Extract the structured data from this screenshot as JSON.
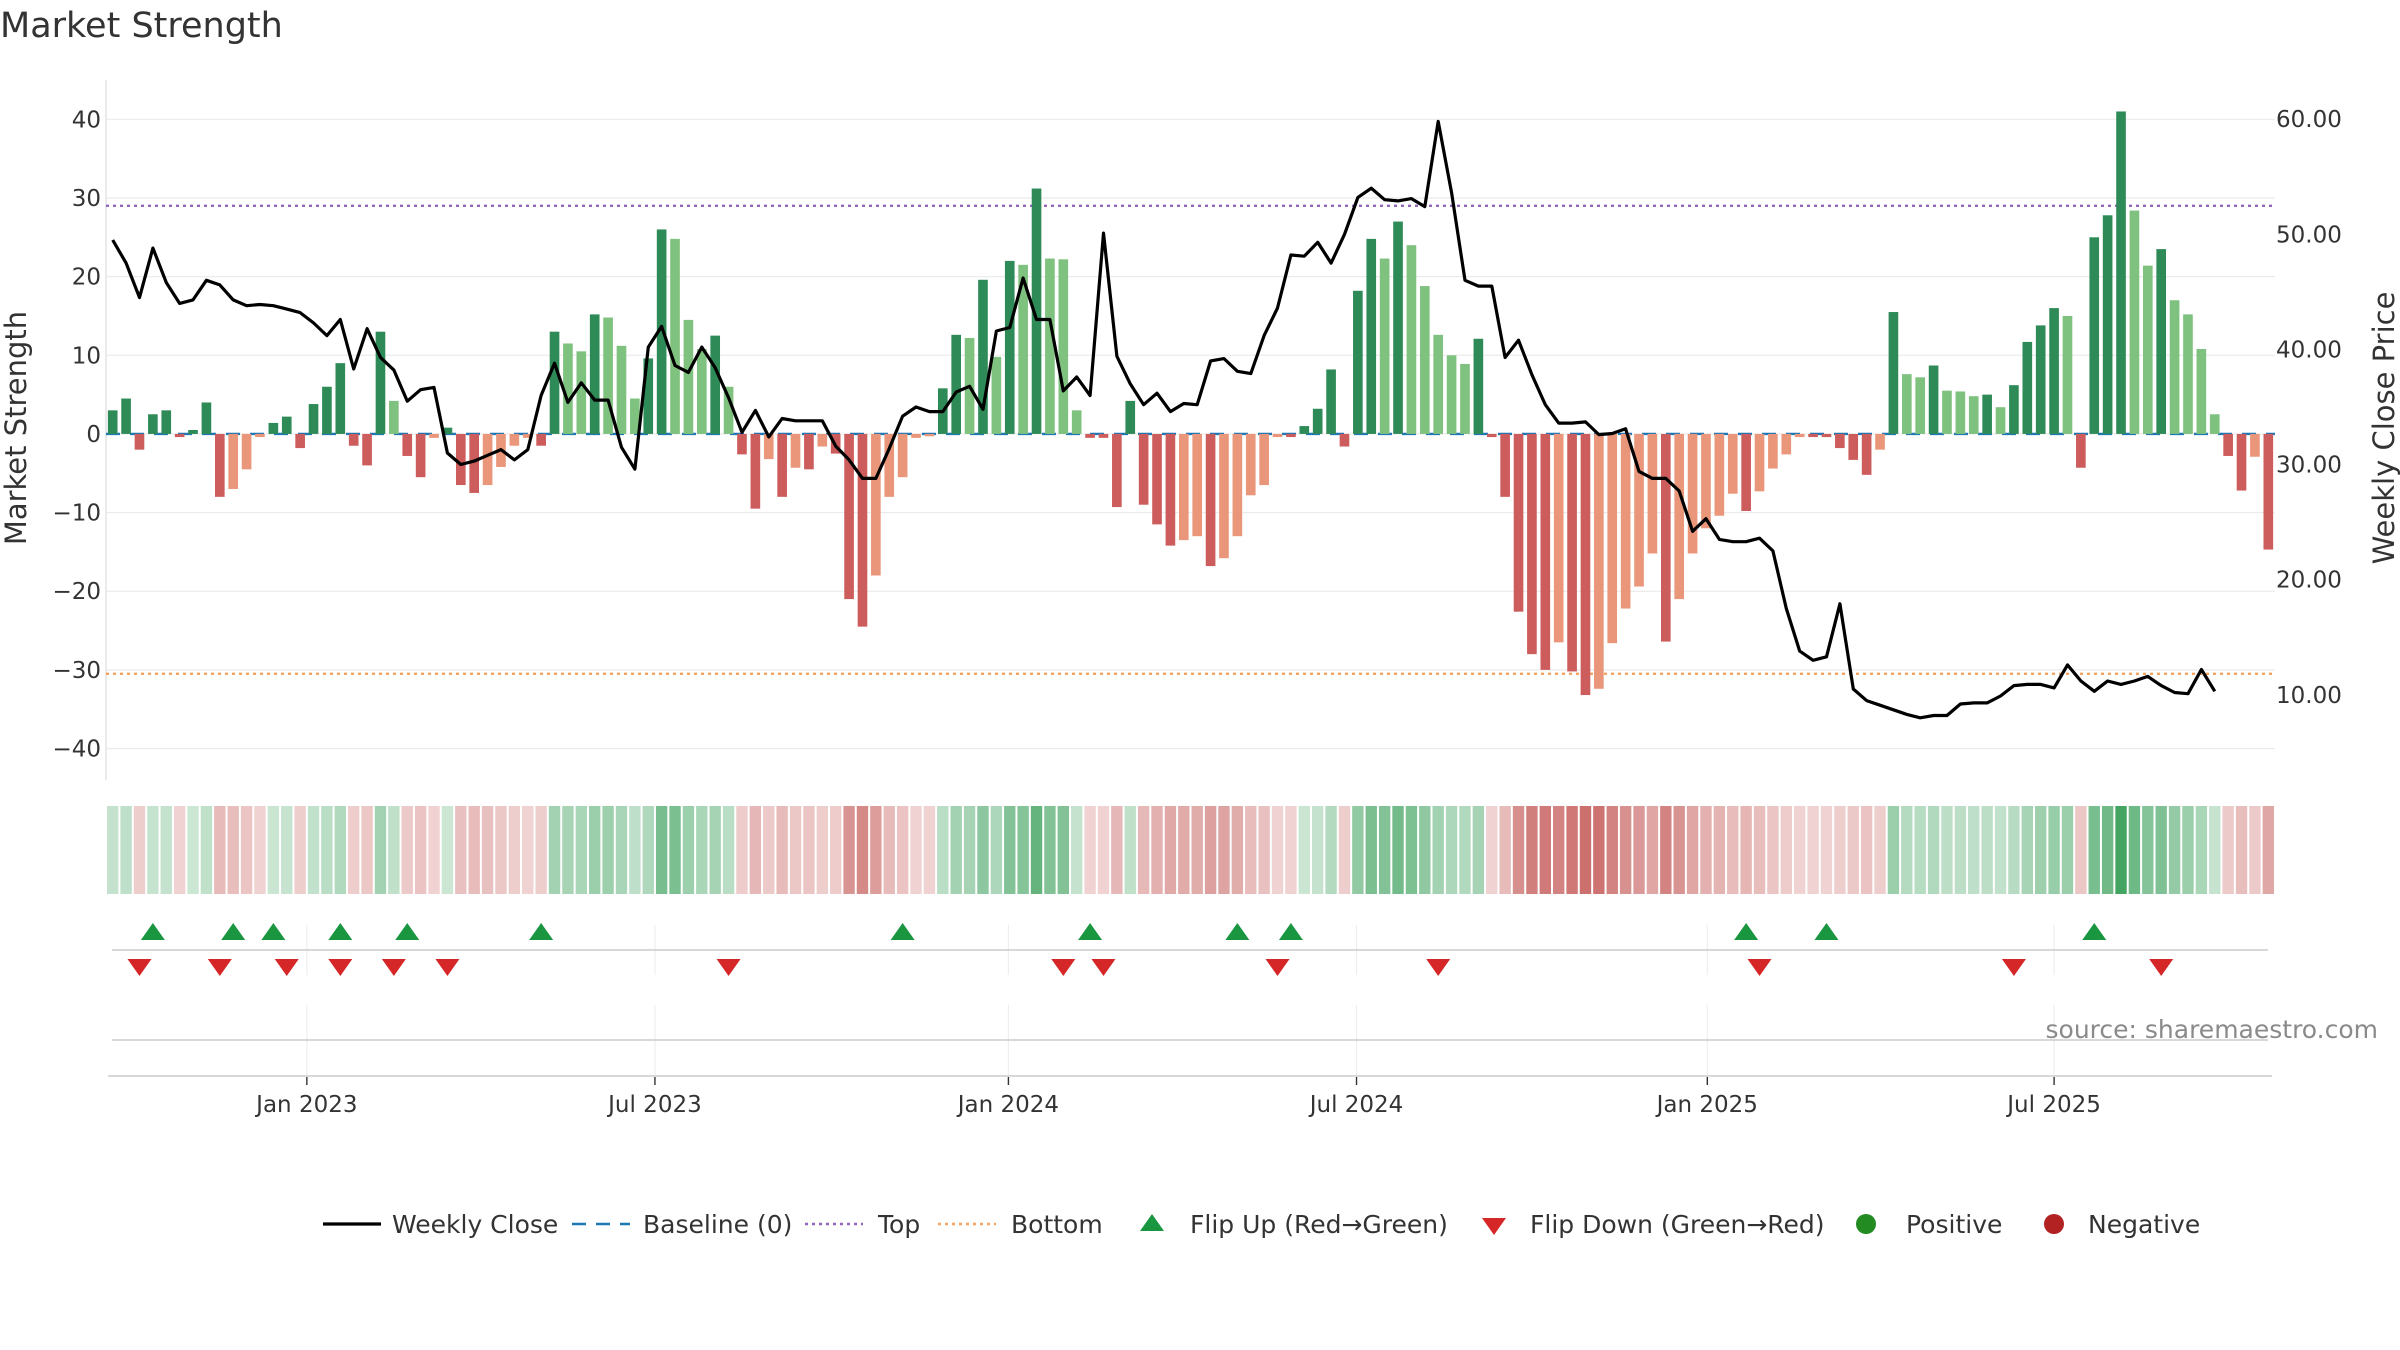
{
  "title": "Market Strength",
  "source": "source: sharemaestro.com",
  "colors": {
    "green_dark": "#2e8b57",
    "green_light": "#7fc17f",
    "red_dark": "#cd5c5c",
    "red_light": "#e9967a",
    "line": "#000000",
    "baseline": "#1f77b4",
    "top": "#9467bd",
    "bottom": "#f4a460",
    "flip_up": "#1a9641",
    "flip_down": "#d62728",
    "positive": "#228b22",
    "negative": "#b22222"
  },
  "legend": [
    {
      "label": "Weekly Close",
      "kind": "line"
    },
    {
      "label": "Baseline (0)",
      "kind": "dash"
    },
    {
      "label": "Top",
      "kind": "dot-purple"
    },
    {
      "label": "Bottom",
      "kind": "dot-orange"
    },
    {
      "label": "Flip Up (Red→Green)",
      "kind": "tri-up"
    },
    {
      "label": "Flip Down (Green→Red)",
      "kind": "tri-down"
    },
    {
      "label": "Positive",
      "kind": "circle-green"
    },
    {
      "label": "Negative",
      "kind": "circle-red"
    }
  ],
  "chart_data": {
    "type": "bar",
    "title": "Market Strength",
    "ylabel": "Market Strength",
    "y2label": "Weekly Close Price",
    "ylim": [
      -44,
      45
    ],
    "y2lim": [
      2.6,
      63.4
    ],
    "yticks": [
      40,
      30,
      20,
      10,
      0,
      -10,
      -20,
      -30,
      -40
    ],
    "yticklabels": [
      "40",
      "30",
      "20",
      "10",
      "0",
      "−10",
      "−20",
      "−30",
      "−40"
    ],
    "y2ticks": [
      60,
      50,
      40,
      30,
      20,
      10
    ],
    "y2ticklabels": [
      "60.00",
      "50.00",
      "40.00",
      "30.00",
      "20.00",
      "10.00"
    ],
    "top_level": 29,
    "bottom_level": -30.5,
    "xticks": [
      {
        "label": "Jan 2023",
        "week": 15
      },
      {
        "label": "Jul 2023",
        "week": 41
      },
      {
        "label": "Jan 2024",
        "week": 67.4
      },
      {
        "label": "Jul 2024",
        "week": 93.4
      },
      {
        "label": "Jan 2025",
        "week": 119.6
      },
      {
        "label": "Jul 2025",
        "week": 145.5
      }
    ],
    "strength": [
      3,
      4.5,
      -2,
      2.5,
      3,
      -0.4,
      0.5,
      4,
      -8,
      -7,
      -4.5,
      -0.4,
      1.4,
      2.2,
      -1.8,
      3.8,
      6,
      9,
      -1.5,
      -4,
      13,
      4.2,
      -2.8,
      -5.5,
      -0.5,
      0.8,
      -6.5,
      -7.5,
      -6.5,
      -4.2,
      -1.5,
      -0.5,
      -1.5,
      13,
      11.5,
      10.5,
      15.2,
      14.8,
      11.2,
      4.5,
      9.6,
      26,
      24.8,
      14.5,
      10.8,
      12.5,
      6,
      -2.6,
      -9.5,
      -3.2,
      -8,
      -4.3,
      -4.5,
      -1.6,
      -2.5,
      -21,
      -24.5,
      -18,
      -8,
      -5.5,
      -0.5,
      -0.3,
      5.8,
      12.6,
      12.2,
      19.6,
      9.8,
      22,
      21.5,
      31.2,
      22.3,
      22.2,
      3,
      -0.5,
      -0.5,
      -9.3,
      4.2,
      -9,
      -11.5,
      -14.2,
      -13.5,
      -13,
      -16.8,
      -15.8,
      -13,
      -7.8,
      -6.5,
      -0.4,
      -0.4,
      1,
      3.2,
      8.2,
      -1.6,
      18.2,
      24.8,
      22.3,
      27,
      24,
      18.8,
      12.6,
      10,
      8.9,
      12.1,
      -0.4,
      -8,
      -22.6,
      -28,
      -30,
      -26.5,
      -30.2,
      -33.2,
      -32.4,
      -26.6,
      -22.2,
      -19.4,
      -15.2,
      -26.4,
      -21,
      -15.2,
      -12,
      -10.4,
      -7.6,
      -9.8,
      -7.3,
      -4.4,
      -2.6,
      -0.4,
      -0.4,
      -0.4,
      -1.8,
      -3.3,
      -5.2,
      -2,
      15.5,
      7.6,
      7.2,
      8.7,
      5.5,
      5.4,
      4.8,
      5,
      3.4,
      6.2,
      11.7,
      13.8,
      16,
      15,
      -4.3,
      25,
      27.8,
      41,
      28.4,
      21.4,
      23.5,
      17,
      15.2,
      10.8,
      2.5,
      -2.8,
      -7.2,
      -2.9,
      -14.7
    ],
    "flip_up_weeks": [
      3,
      9,
      12,
      17,
      22,
      32,
      59,
      73,
      84,
      88,
      122,
      128,
      148
    ],
    "flip_down_weeks": [
      2,
      8,
      13,
      17,
      21,
      25,
      46,
      71,
      74,
      87,
      99,
      123,
      142,
      153
    ],
    "weekly_close": [
      49.5,
      47.5,
      44.5,
      48.8,
      45.8,
      44,
      44.3,
      46,
      45.6,
      44.3,
      43.8,
      43.9,
      43.8,
      43.5,
      43.2,
      42.3,
      41.2,
      42.6,
      38.3,
      41.8,
      39.3,
      38.2,
      35.5,
      36.5,
      36.7,
      31,
      30,
      30.3,
      30.8,
      31.3,
      30.4,
      31.3,
      36,
      38.8,
      35.4,
      37.1,
      35.6,
      35.6,
      31.5,
      29.6,
      40.2,
      42,
      38.6,
      38,
      40.2,
      38.4,
      35.8,
      32.8,
      34.7,
      32.4,
      34,
      33.8,
      33.8,
      33.8,
      31.6,
      30.4,
      28.8,
      28.8,
      31.4,
      34.2,
      35,
      34.6,
      34.6,
      36.3,
      36.8,
      34.8,
      41.6,
      41.9,
      46.2,
      42.6,
      42.6,
      36.4,
      37.6,
      36,
      50.1,
      39.4,
      37,
      35.2,
      36.2,
      34.6,
      35.3,
      35.2,
      39,
      39.2,
      38.1,
      37.9,
      41.2,
      43.6,
      48.2,
      48.1,
      49.3,
      47.5,
      50,
      53.2,
      54,
      53,
      52.9,
      53.1,
      52.4,
      59.8,
      53.6,
      46,
      45.5,
      45.5,
      39.3,
      40.8,
      37.8,
      35.2,
      33.6,
      33.6,
      33.7,
      32.6,
      32.7,
      33.1,
      29.4,
      28.8,
      28.8,
      27.7,
      24.2,
      25.3,
      23.5,
      23.3,
      23.3,
      23.6,
      22.5,
      17.5,
      13.8,
      13,
      13.3,
      17.9,
      10.5,
      9.5,
      9.1,
      8.7,
      8.3,
      8,
      8.2,
      8.2,
      9.2,
      9.3,
      9.3,
      9.9,
      10.8,
      10.9,
      10.9,
      10.6,
      12.6,
      11.2,
      10.3,
      11.2,
      10.9,
      11.2,
      11.6,
      10.8,
      10.2,
      10.1,
      12.2,
      10.3
    ]
  }
}
